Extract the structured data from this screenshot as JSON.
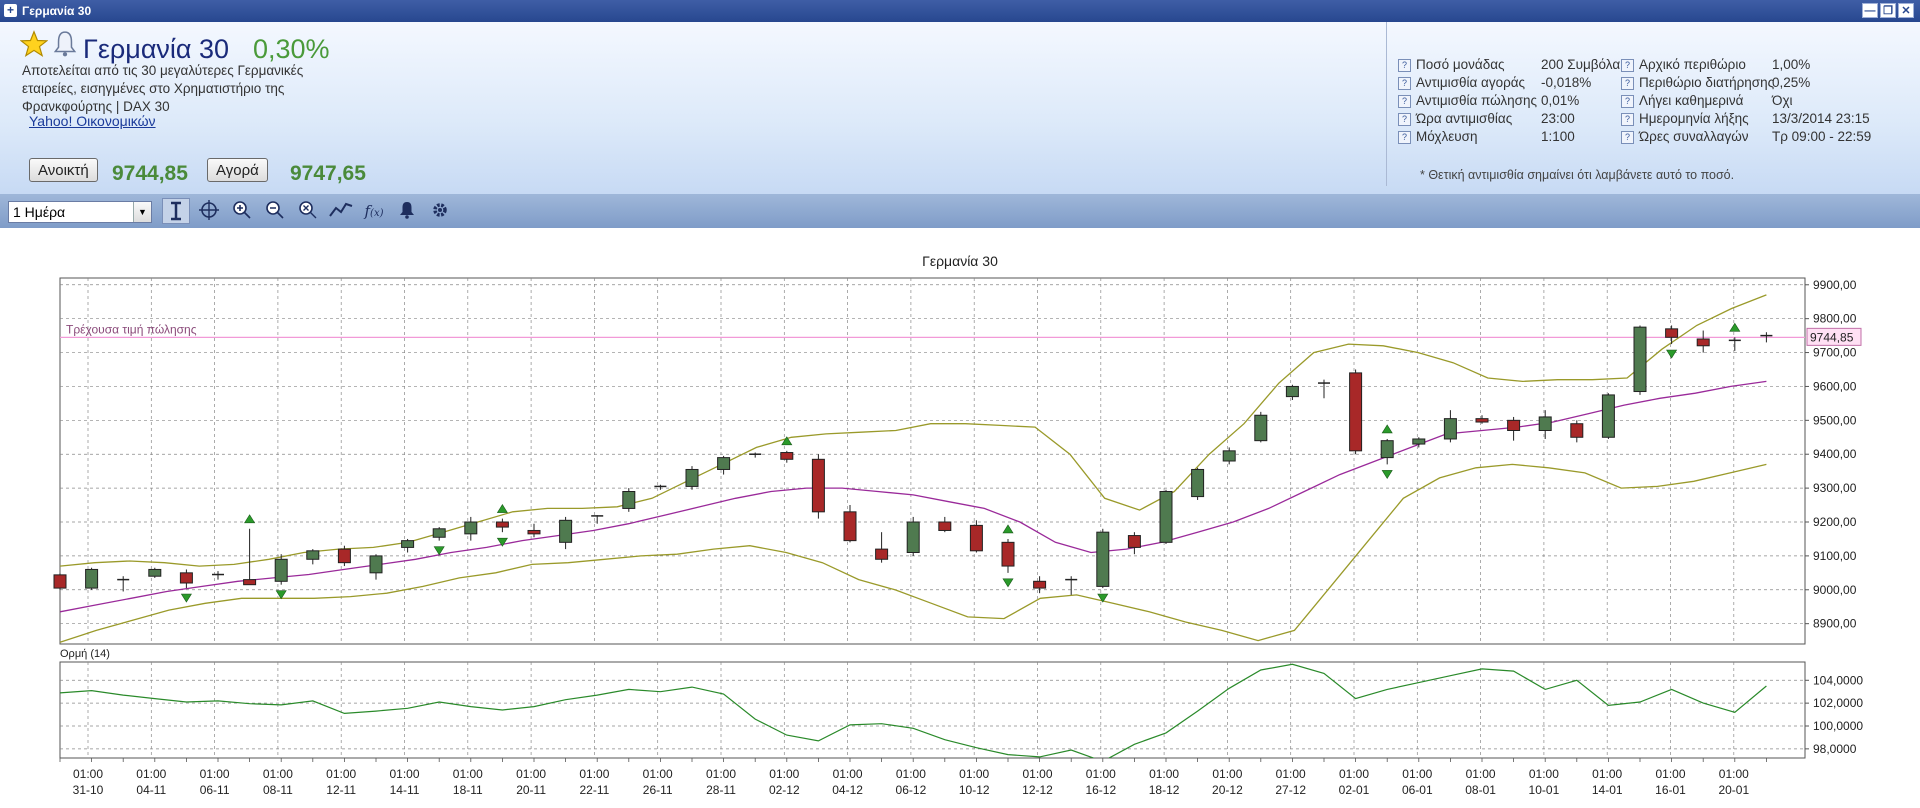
{
  "window": {
    "title": "Γερμανία 30"
  },
  "instrument": {
    "name": "Γερμανία 30",
    "change": "0,30%",
    "description": [
      "Αποτελείται από τις 30 μεγαλύτερες Γερμανικές",
      "εταιρείες, εισηγμένες στο Χρηματιστήριο της",
      "Φρανκφούρτης | DAX 30"
    ],
    "link": "Yahoo! Οικονομικών",
    "sell_label": "Ανοικτή",
    "sell_price": "9744,85",
    "buy_label": "Αγορά",
    "buy_price": "9747,65"
  },
  "info": {
    "left": [
      {
        "label": "Ποσό μονάδας",
        "value": "200 Συμβόλαια"
      },
      {
        "label": "Αντιμισθία αγοράς",
        "value": "-0,018%"
      },
      {
        "label": "Αντιμισθία πώλησης",
        "value": "0,01%"
      },
      {
        "label": "Ώρα αντιμισθίας",
        "value": "23:00"
      },
      {
        "label": "Μόχλευση",
        "value": "1:100"
      }
    ],
    "right": [
      {
        "label": "Αρχικό περιθώριο",
        "value": "1,00%"
      },
      {
        "label": "Περιθώριο διατήρησης",
        "value": "0,25%"
      },
      {
        "label": "Λήγει καθημερινά",
        "value": "Όχι"
      },
      {
        "label": "Ημερομηνία λήξης",
        "value": "13/3/2014  23:15"
      },
      {
        "label": "Ώρες συναλλαγών",
        "value": "Τρ 09:00 - 22:59"
      }
    ],
    "note": "* Θετική αντιμισθία σημαίνει ότι λαμβάνετε αυτό το ποσό."
  },
  "toolbar": {
    "period": "1 Ημέρα",
    "icons": [
      "cursor-icon",
      "crosshair-icon",
      "zoom-in-icon",
      "zoom-out-icon",
      "zoom-reset-icon",
      "line-chart-icon",
      "function-icon",
      "alert-bell-icon",
      "settings-gear-icon"
    ]
  },
  "chart_data": [
    {
      "type": "candlestick",
      "title": "Γερμανία 30",
      "current_price_label": "Τρέχουσα τιμή πώλησης",
      "current_price": 9744.85,
      "current_price_tag": "9744,85",
      "ylim": [
        8840,
        9920
      ],
      "y_ticks": [
        "8900,00",
        "9000,00",
        "9100,00",
        "9200,00",
        "9300,00",
        "9400,00",
        "9500,00",
        "9600,00",
        "9700,00",
        "9800,00",
        "9900,00"
      ],
      "x_ticks": [
        [
          "01:00",
          "31-10"
        ],
        [
          "01:00",
          "04-11"
        ],
        [
          "01:00",
          "06-11"
        ],
        [
          "01:00",
          "08-11"
        ],
        [
          "01:00",
          "12-11"
        ],
        [
          "01:00",
          "14-11"
        ],
        [
          "01:00",
          "18-11"
        ],
        [
          "01:00",
          "20-11"
        ],
        [
          "01:00",
          "22-11"
        ],
        [
          "01:00",
          "26-11"
        ],
        [
          "01:00",
          "28-11"
        ],
        [
          "01:00",
          "02-12"
        ],
        [
          "01:00",
          "04-12"
        ],
        [
          "01:00",
          "06-12"
        ],
        [
          "01:00",
          "10-12"
        ],
        [
          "01:00",
          "12-12"
        ],
        [
          "01:00",
          "16-12"
        ],
        [
          "01:00",
          "18-12"
        ],
        [
          "01:00",
          "20-12"
        ],
        [
          "01:00",
          "27-12"
        ],
        [
          "01:00",
          "02-01"
        ],
        [
          "01:00",
          "06-01"
        ],
        [
          "01:00",
          "08-01"
        ],
        [
          "01:00",
          "10-01"
        ],
        [
          "01:00",
          "14-01"
        ],
        [
          "01:00",
          "16-01"
        ],
        [
          "01:00",
          "20-01"
        ]
      ],
      "candles": [
        [
          9044,
          9048,
          9000,
          9005
        ],
        [
          9005,
          9065,
          9000,
          9060
        ],
        [
          9030,
          9040,
          8995,
          9030
        ],
        [
          9040,
          9065,
          9035,
          9060
        ],
        [
          9050,
          9060,
          9005,
          9020
        ],
        [
          9040,
          9055,
          9030,
          9045
        ],
        [
          9030,
          9180,
          9015,
          9015
        ],
        [
          9025,
          9105,
          9015,
          9090
        ],
        [
          9090,
          9120,
          9075,
          9115
        ],
        [
          9120,
          9130,
          9070,
          9080
        ],
        [
          9050,
          9105,
          9030,
          9100
        ],
        [
          9125,
          9150,
          9110,
          9145
        ],
        [
          9155,
          9185,
          9145,
          9180
        ],
        [
          9165,
          9215,
          9145,
          9200
        ],
        [
          9200,
          9210,
          9170,
          9185
        ],
        [
          9175,
          9195,
          9155,
          9165
        ],
        [
          9140,
          9215,
          9120,
          9205
        ],
        [
          9215,
          9220,
          9195,
          9218
        ],
        [
          9240,
          9300,
          9230,
          9290
        ],
        [
          9300,
          9310,
          9295,
          9305
        ],
        [
          9305,
          9365,
          9295,
          9355
        ],
        [
          9355,
          9395,
          9340,
          9390
        ],
        [
          9400,
          9405,
          9390,
          9398
        ],
        [
          9405,
          9410,
          9375,
          9385
        ],
        [
          9385,
          9400,
          9210,
          9230
        ],
        [
          9230,
          9250,
          9140,
          9145
        ],
        [
          9120,
          9170,
          9080,
          9090
        ],
        [
          9110,
          9215,
          9100,
          9200
        ],
        [
          9200,
          9215,
          9170,
          9175
        ],
        [
          9190,
          9205,
          9110,
          9115
        ],
        [
          9140,
          9150,
          9050,
          9070
        ],
        [
          9025,
          9040,
          8990,
          9005
        ],
        [
          9030,
          9040,
          8985,
          9030
        ],
        [
          9010,
          9180,
          9005,
          9170
        ],
        [
          9160,
          9170,
          9105,
          9125
        ],
        [
          9140,
          9295,
          9135,
          9290
        ],
        [
          9275,
          9360,
          9265,
          9355
        ],
        [
          9380,
          9420,
          9370,
          9410
        ],
        [
          9440,
          9525,
          9435,
          9515
        ],
        [
          9570,
          9605,
          9560,
          9600
        ],
        [
          9610,
          9620,
          9565,
          9605
        ],
        [
          9640,
          9650,
          9400,
          9410
        ],
        [
          9390,
          9445,
          9370,
          9440
        ],
        [
          9430,
          9450,
          9420,
          9445
        ],
        [
          9445,
          9530,
          9435,
          9505
        ],
        [
          9505,
          9515,
          9490,
          9495
        ],
        [
          9500,
          9510,
          9440,
          9470
        ],
        [
          9470,
          9530,
          9445,
          9510
        ],
        [
          9490,
          9500,
          9435,
          9450
        ],
        [
          9450,
          9580,
          9445,
          9575
        ],
        [
          9585,
          9780,
          9575,
          9775
        ],
        [
          9770,
          9780,
          9725,
          9745
        ],
        [
          9740,
          9765,
          9700,
          9720
        ],
        [
          9735,
          9745,
          9705,
          9736
        ],
        [
          9745,
          9760,
          9730,
          9750
        ]
      ],
      "bollinger_upper": [
        9070,
        9080,
        9085,
        9080,
        9070,
        9075,
        9090,
        9110,
        9120,
        9125,
        9140,
        9170,
        9200,
        9230,
        9240,
        9240,
        9245,
        9270,
        9320,
        9370,
        9420,
        9450,
        9460,
        9465,
        9470,
        9490,
        9490,
        9485,
        9480,
        9400,
        9270,
        9235,
        9290,
        9400,
        9490,
        9610,
        9700,
        9725,
        9720,
        9700,
        9670,
        9625,
        9615,
        9620,
        9620,
        9625,
        9710,
        9780,
        9830,
        9870
      ],
      "bollinger_middle": [
        8935,
        8955,
        8975,
        8995,
        9010,
        9025,
        9035,
        9045,
        9060,
        9075,
        9090,
        9110,
        9125,
        9145,
        9160,
        9175,
        9195,
        9220,
        9245,
        9270,
        9290,
        9300,
        9300,
        9290,
        9280,
        9260,
        9240,
        9200,
        9140,
        9110,
        9120,
        9140,
        9170,
        9200,
        9240,
        9290,
        9340,
        9380,
        9420,
        9460,
        9470,
        9480,
        9495,
        9520,
        9545,
        9565,
        9580,
        9600,
        9615
      ],
      "bollinger_lower": [
        8845,
        8880,
        8910,
        8940,
        8960,
        8975,
        8975,
        8975,
        8980,
        8990,
        9010,
        9035,
        9050,
        9075,
        9080,
        9090,
        9100,
        9105,
        9120,
        9130,
        9110,
        9080,
        9030,
        9000,
        8960,
        8920,
        8915,
        8975,
        8985,
        8960,
        8935,
        8905,
        8880,
        8850,
        8880,
        9010,
        9140,
        9270,
        9330,
        9360,
        9370,
        9360,
        9345,
        9300,
        9305,
        9320,
        9345,
        9370
      ],
      "fractal_up": [
        6,
        14,
        23,
        30,
        42,
        53
      ],
      "fractal_down": [
        4,
        7,
        12,
        14,
        30,
        33,
        42,
        51
      ]
    },
    {
      "type": "line",
      "title": "Ορμή (14)",
      "ylim": [
        97200,
        105600
      ],
      "y_ticks": [
        "98,0000",
        "100,0000",
        "102,0000",
        "104,0000"
      ],
      "values": [
        102900,
        103100,
        102700,
        102400,
        102100,
        102200,
        101950,
        101850,
        102200,
        101100,
        101300,
        101550,
        102100,
        101700,
        101400,
        101700,
        102300,
        102700,
        103200,
        103000,
        103400,
        102800,
        100600,
        99200,
        98700,
        100100,
        100200,
        99800,
        98800,
        98100,
        97500,
        97300,
        97900,
        96900,
        98400,
        99400,
        101300,
        103300,
        104900,
        105400,
        104600,
        102400,
        103200,
        103800,
        104400,
        105000,
        104800,
        103200,
        104000,
        101800,
        102100,
        103200,
        102000,
        101200,
        103500
      ]
    }
  ]
}
